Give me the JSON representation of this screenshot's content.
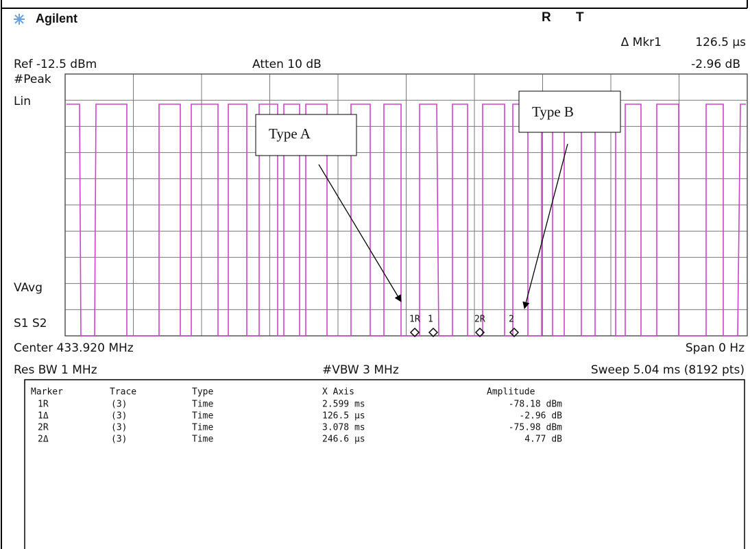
{
  "header": {
    "brand": "Agilent",
    "r": "R",
    "t": "T",
    "marker_label": "Δ Mkr1",
    "marker_x": "126.5 µs",
    "marker_y": "-2.96 dB"
  },
  "settings": {
    "ref": "Ref -12.5 dBm",
    "atten": "Atten 10 dB",
    "detector": "#Peak",
    "scale": "Lin",
    "vavg": "VAvg",
    "s1s2": "S1  S2",
    "center": "Center 433.920 MHz",
    "span": "Span 0 Hz",
    "res_bw": "Res BW 1 MHz",
    "vbw": "#VBW 3 MHz",
    "sweep": "Sweep 5.04 ms (8192 pts)"
  },
  "markers": [
    "1R",
    "1",
    "2R",
    "2"
  ],
  "annotations": [
    "Type A",
    "Type B"
  ],
  "table": {
    "columns": [
      "Marker",
      "Trace",
      "Type",
      "X Axis",
      "Amplitude"
    ],
    "rows": [
      [
        "1R",
        "(3)",
        "Time",
        "2.599 ms",
        "-78.18 dBm"
      ],
      [
        "1Δ",
        "(3)",
        "Time",
        "126.5 µs",
        "-2.96 dB"
      ],
      [
        "2R",
        "(3)",
        "Time",
        "3.078 ms",
        "-75.98 dBm"
      ],
      [
        "2Δ",
        "(3)",
        "Time",
        "246.6 µs",
        "4.77 dB"
      ]
    ]
  }
}
